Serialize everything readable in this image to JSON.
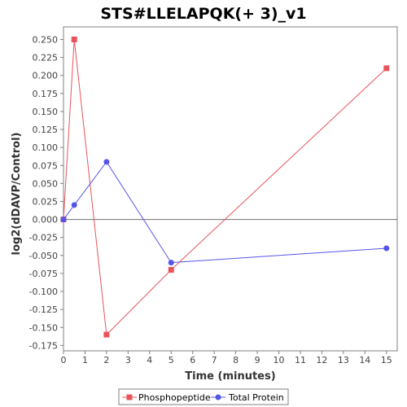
{
  "chart_data": {
    "type": "line",
    "title": "STS#LLELAPQK(+ 3)_v1",
    "xlabel": "Time (minutes)",
    "ylabel": "log2(dDAVP/Control)",
    "xlim": [
      0,
      15.5
    ],
    "ylim": [
      -0.1825,
      0.2675
    ],
    "x_ticks": [
      0,
      1,
      2,
      3,
      4,
      5,
      6,
      7,
      8,
      9,
      10,
      11,
      12,
      13,
      14,
      15
    ],
    "y_ticks": [
      -0.175,
      -0.15,
      -0.125,
      -0.1,
      -0.075,
      -0.05,
      -0.025,
      0.0,
      0.025,
      0.05,
      0.075,
      0.1,
      0.125,
      0.15,
      0.175,
      0.2,
      0.225,
      0.25
    ],
    "y_tick_labels": [
      "-0.175",
      "-0.150",
      "-0.125",
      "-0.100",
      "-0.075",
      "-0.050",
      "-0.025",
      "0.000",
      "0.025",
      "0.050",
      "0.075",
      "0.100",
      "0.125",
      "0.150",
      "0.175",
      "0.200",
      "0.225",
      "0.250"
    ],
    "zero_line": true,
    "grid": false,
    "legend_position": "bottom",
    "series": [
      {
        "name": "Phosphopeptide",
        "color": "#e8545a",
        "marker": "square",
        "x": [
          0,
          0.5,
          2,
          5,
          15
        ],
        "y": [
          0.0,
          0.25,
          -0.16,
          -0.07,
          0.21
        ]
      },
      {
        "name": "Total Protein",
        "color": "#5555e8",
        "marker": "circle",
        "x": [
          0,
          0.5,
          2,
          5,
          15
        ],
        "y": [
          0.0,
          0.02,
          0.08,
          -0.06,
          -0.04
        ]
      }
    ]
  }
}
